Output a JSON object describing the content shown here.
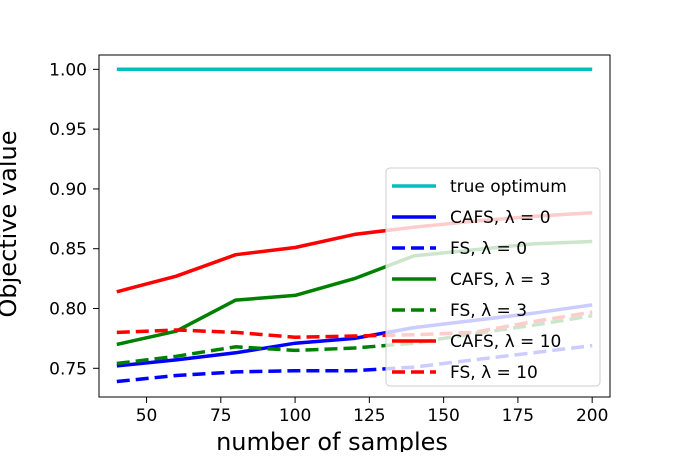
{
  "chart_data": {
    "type": "line",
    "title": "",
    "xlabel": "number of samples",
    "ylabel": "Objective value",
    "xlim": [
      34,
      206
    ],
    "ylim": [
      0.726,
      1.012
    ],
    "xticks": [
      50,
      75,
      100,
      125,
      150,
      175,
      200
    ],
    "xtick_labels": [
      "50",
      "75",
      "100",
      "125",
      "150",
      "175",
      "200"
    ],
    "yticks": [
      0.75,
      0.8,
      0.85,
      0.9,
      0.95,
      1.0
    ],
    "ytick_labels": [
      "0.75",
      "0.80",
      "0.85",
      "0.90",
      "0.95",
      "1.00"
    ],
    "grid": false,
    "legend_position": "right",
    "x": [
      40,
      60,
      80,
      100,
      120,
      140,
      160,
      180,
      200
    ],
    "series": [
      {
        "name": "true optimum",
        "color": "#00bfbf",
        "dash": "solid",
        "values": [
          1.0,
          1.0,
          1.0,
          1.0,
          1.0,
          1.0,
          1.0,
          1.0,
          1.0
        ]
      },
      {
        "name": "CAFS, λ = 0",
        "color": "#0000ff",
        "dash": "solid",
        "values": [
          0.752,
          0.757,
          0.763,
          0.771,
          0.775,
          0.784,
          0.79,
          0.796,
          0.803
        ]
      },
      {
        "name": "FS, λ = 0",
        "color": "#0000ff",
        "dash": "dashed",
        "values": [
          0.739,
          0.744,
          0.747,
          0.748,
          0.748,
          0.751,
          0.757,
          0.763,
          0.769
        ]
      },
      {
        "name": "CAFS, λ = 3",
        "color": "#008000",
        "dash": "solid",
        "values": [
          0.77,
          0.781,
          0.807,
          0.811,
          0.825,
          0.844,
          0.849,
          0.854,
          0.856
        ]
      },
      {
        "name": "FS, λ = 3",
        "color": "#008000",
        "dash": "dashed",
        "values": [
          0.754,
          0.76,
          0.768,
          0.765,
          0.767,
          0.771,
          0.779,
          0.786,
          0.794
        ]
      },
      {
        "name": "CAFS, λ = 10",
        "color": "#ff0000",
        "dash": "solid",
        "values": [
          0.814,
          0.827,
          0.845,
          0.851,
          0.862,
          0.868,
          0.873,
          0.877,
          0.88
        ]
      },
      {
        "name": "FS, λ = 10",
        "color": "#ff0000",
        "dash": "dashed",
        "values": [
          0.78,
          0.782,
          0.78,
          0.776,
          0.777,
          0.778,
          0.78,
          0.789,
          0.797
        ]
      }
    ]
  }
}
